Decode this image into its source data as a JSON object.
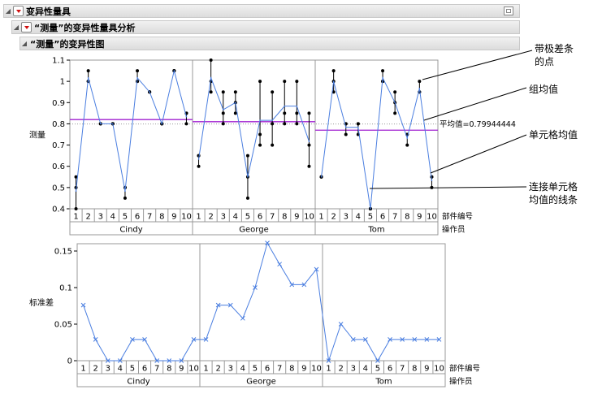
{
  "report": {
    "title": "变异性量具",
    "analysis_title": "“测量”的变异性量具分析",
    "chart_title": "“测量”的变异性图"
  },
  "callouts": {
    "range_points": [
      "带极差条",
      "的点"
    ],
    "group_mean": "组均值",
    "cell_mean": "单元格均值",
    "connect_line": [
      "连接单元格",
      "均值的线条"
    ]
  },
  "chart_data": [
    {
      "type": "variability",
      "ylabel": "测量",
      "ylim": [
        0.4,
        1.1
      ],
      "yticks": [
        0.4,
        0.5,
        0.6,
        0.7,
        0.8,
        0.9,
        1,
        1.1
      ],
      "xlabel_part": "部件编号",
      "xlabel_operator": "操作员",
      "parts": [
        "1",
        "2",
        "3",
        "4",
        "5",
        "6",
        "7",
        "8",
        "9",
        "10"
      ],
      "grand_mean": 0.79944444,
      "grand_mean_label": "平均值=0.79944444",
      "colors": {
        "cell_mean": "#4a7ee0",
        "group_mean": "#a020d0",
        "points": "#000000",
        "grand_mean": "#999999"
      },
      "operators": [
        {
          "name": "Cindy",
          "group_mean": 0.82,
          "measurements": [
            [
              0.4,
              0.5,
              0.55
            ],
            [
              1,
              1.05,
              1
            ],
            [
              0.8,
              0.8,
              0.8
            ],
            [
              0.8,
              0.8,
              0.8
            ],
            [
              0.45,
              0.5,
              0.5
            ],
            [
              1,
              1.05,
              1
            ],
            [
              0.95,
              0.95,
              0.95
            ],
            [
              0.8,
              0.8,
              0.8
            ],
            [
              1.05,
              1.05,
              1.05
            ],
            [
              0.8,
              0.85,
              0.85
            ]
          ]
        },
        {
          "name": "George",
          "group_mean": 0.81,
          "measurements": [
            [
              0.6,
              0.65,
              0.65
            ],
            [
              0.95,
              1,
              1.1
            ],
            [
              0.8,
              0.85,
              0.95
            ],
            [
              0.85,
              0.9,
              0.95
            ],
            [
              0.45,
              0.55,
              0.65
            ],
            [
              0.7,
              0.75,
              1
            ],
            [
              0.7,
              0.8,
              0.95
            ],
            [
              0.8,
              0.85,
              1
            ],
            [
              0.8,
              0.85,
              1
            ],
            [
              0.6,
              0.7,
              0.85
            ]
          ]
        },
        {
          "name": "Tom",
          "group_mean": 0.77,
          "measurements": [
            [
              0.55,
              0.55,
              0.55
            ],
            [
              0.95,
              1,
              1.05
            ],
            [
              0.75,
              0.8,
              0.8
            ],
            [
              0.75,
              0.8,
              0.8
            ],
            [
              0.4,
              0.4,
              0.4
            ],
            [
              1,
              1.05,
              1
            ],
            [
              0.85,
              0.9,
              0.95
            ],
            [
              0.7,
              0.75,
              0.75
            ],
            [
              0.95,
              1,
              0.95
            ],
            [
              0.5,
              0.55,
              0.55
            ]
          ]
        }
      ]
    },
    {
      "type": "line",
      "ylabel": "标准差",
      "ylim": [
        0,
        0.16
      ],
      "yticks": [
        0,
        0.05,
        0.1,
        0.15
      ],
      "xlabel_part": "部件编号",
      "xlabel_operator": "操作员",
      "parts": [
        "1",
        "2",
        "3",
        "4",
        "5",
        "6",
        "7",
        "8",
        "9",
        "10"
      ],
      "marker": "x",
      "color": "#4a7ee0",
      "operators": [
        {
          "name": "Cindy",
          "values": [
            0.076,
            0.029,
            0,
            0,
            0.029,
            0.029,
            0,
            0,
            0,
            0.029
          ]
        },
        {
          "name": "George",
          "values": [
            0.029,
            0.076,
            0.076,
            0.058,
            0.1,
            0.161,
            0.132,
            0.104,
            0.104,
            0.125
          ]
        },
        {
          "name": "Tom",
          "values": [
            0,
            0.05,
            0.029,
            0.029,
            0,
            0.029,
            0.029,
            0.029,
            0.029,
            0.029
          ]
        }
      ]
    }
  ]
}
